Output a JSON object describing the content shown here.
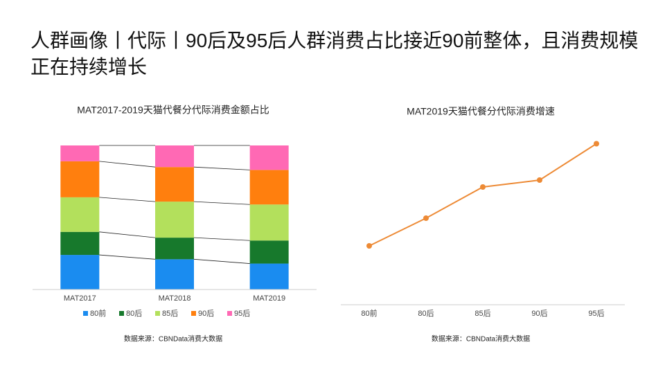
{
  "page_title": "人群画像丨代际丨90后及95后人群消费占比接近90前整体，且消费规模正在持续增长",
  "chart_data": [
    {
      "type": "stacked_bar_100",
      "title": "MAT2017-2019天猫代餐分代际消费金额占比",
      "categories": [
        "MAT2017",
        "MAT2018",
        "MAT2019"
      ],
      "series": [
        {
          "name": "80前",
          "color": "#1a8cf0",
          "values": [
            24,
            21,
            18
          ]
        },
        {
          "name": "80后",
          "color": "#17792c",
          "values": [
            16,
            15,
            16
          ]
        },
        {
          "name": "85后",
          "color": "#b3e05c",
          "values": [
            24,
            25,
            25
          ]
        },
        {
          "name": "90后",
          "color": "#ff7f0e",
          "values": [
            25,
            24,
            24
          ]
        },
        {
          "name": "95后",
          "color": "#ff69b4",
          "values": [
            11,
            15,
            17
          ]
        }
      ],
      "ylim": [
        0,
        100
      ],
      "legend": "bottom",
      "source": "数据来源：CBNData消费大数据"
    },
    {
      "type": "line",
      "title": "MAT2019天猫代餐分代际消费增速",
      "categories": [
        "80前",
        "80后",
        "85后",
        "90后",
        "95后"
      ],
      "series": [
        {
          "name": "消费增速",
          "color": "#ed8a35",
          "values": [
            34,
            50,
            68,
            72,
            93
          ]
        }
      ],
      "ylim": [
        0,
        100
      ],
      "source": "数据来源：CBNData消费大数据"
    }
  ]
}
